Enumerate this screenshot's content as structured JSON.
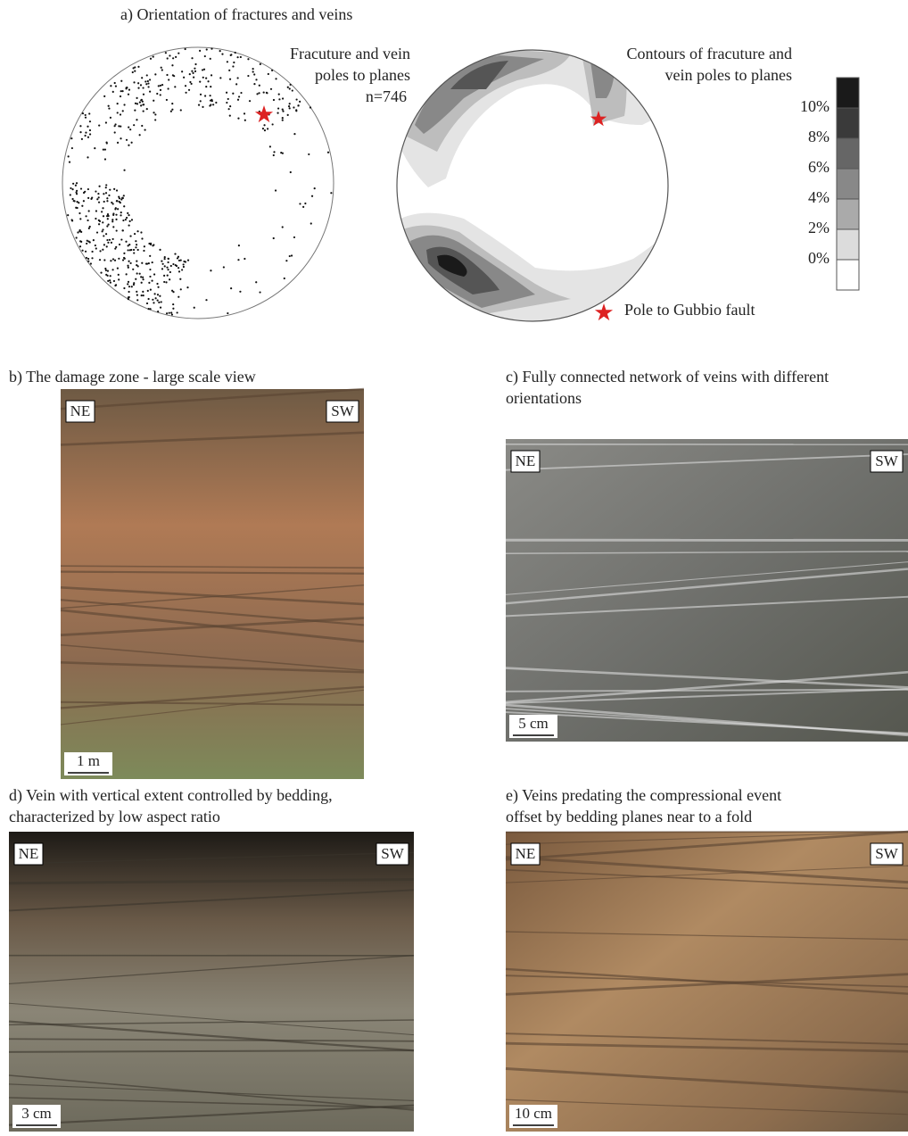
{
  "panel_a": {
    "title": "a) Orientation of fractures and veins",
    "scatter_label": [
      "Fracuture and vein",
      "poles to planes",
      "n=746"
    ],
    "contour_label": [
      "Contours of fracuture and",
      "vein poles to planes"
    ],
    "scale_labels": [
      "10%",
      "8%",
      "6%",
      "4%",
      "2%",
      "0%"
    ],
    "star_legend": "Pole to Gubbio fault"
  },
  "panel_b": {
    "title": [
      "b) The damage zone - large scale view"
    ],
    "left": "NE",
    "right": "SW",
    "scale": "1 m"
  },
  "panel_c": {
    "title": [
      "c) Fully connected network of veins with different",
      "orientations"
    ],
    "left": "NE",
    "right": "SW",
    "scale": "5 cm"
  },
  "panel_d": {
    "title": [
      "d) Vein with vertical extent controlled by bedding,",
      "characterized by low aspect ratio"
    ],
    "left": "NE",
    "right": "SW",
    "scale": "3 cm"
  },
  "panel_e": {
    "title": [
      "e) Veins predating the compressional event",
      "offset by bedding planes near to a fold"
    ],
    "left": "NE",
    "right": "SW",
    "scale": "10 cm"
  }
}
